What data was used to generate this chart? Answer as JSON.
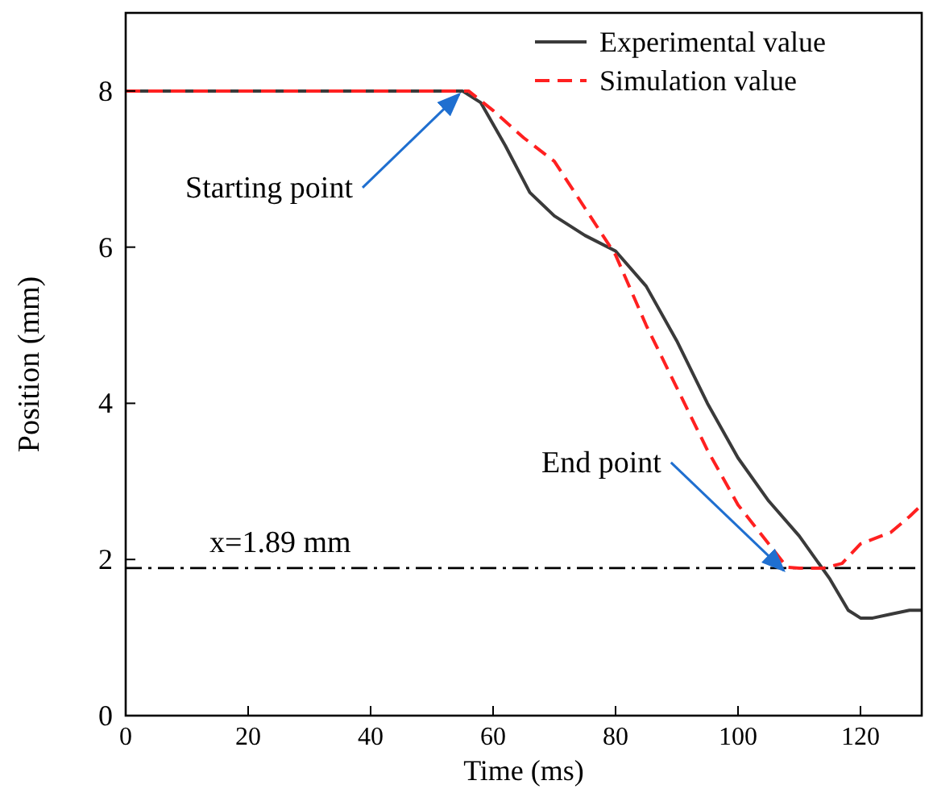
{
  "chart_data": {
    "type": "line",
    "xlabel": "Time (ms)",
    "ylabel": "Position (mm)",
    "xlim": [
      0,
      130
    ],
    "ylim": [
      0,
      9
    ],
    "xticks": [
      0,
      20,
      40,
      60,
      80,
      100,
      120
    ],
    "yticks": [
      0,
      2,
      4,
      6,
      8
    ],
    "legend": "top right",
    "grid": false,
    "series": [
      {
        "name": "Experimental value",
        "color": "#3a3a3a",
        "line_style": "solid",
        "x": [
          0,
          20,
          40,
          50,
          55,
          58,
          62,
          66,
          70,
          75,
          80,
          85,
          90,
          95,
          100,
          105,
          110,
          115,
          118,
          120,
          122,
          125,
          128,
          130
        ],
        "values": [
          8,
          8,
          8,
          8,
          8,
          7.85,
          7.3,
          6.7,
          6.4,
          6.15,
          5.95,
          5.5,
          4.8,
          4.0,
          3.3,
          2.75,
          2.3,
          1.75,
          1.35,
          1.25,
          1.25,
          1.3,
          1.35,
          1.35
        ]
      },
      {
        "name": "Simulation value",
        "color": "#ff2020",
        "line_style": "dashed",
        "x": [
          0,
          20,
          40,
          50,
          56,
          60,
          65,
          70,
          75,
          80,
          85,
          90,
          95,
          100,
          105,
          108,
          110,
          114,
          117,
          120,
          125,
          128,
          130
        ],
        "values": [
          8,
          8,
          8,
          8,
          8,
          7.75,
          7.4,
          7.1,
          6.5,
          5.9,
          5.0,
          4.2,
          3.4,
          2.7,
          2.2,
          1.9,
          1.89,
          1.89,
          1.95,
          2.2,
          2.35,
          2.55,
          2.7
        ]
      }
    ],
    "ref_lines": [
      {
        "axis": "y",
        "value": 1.89,
        "label": "x=1.89 mm",
        "color": "#000000",
        "line_style": "dashdot"
      }
    ],
    "annotations": [
      {
        "text": "Starting point",
        "x": 55,
        "y": 8
      },
      {
        "text": "End point",
        "x": 108,
        "y": 1.9
      }
    ]
  }
}
